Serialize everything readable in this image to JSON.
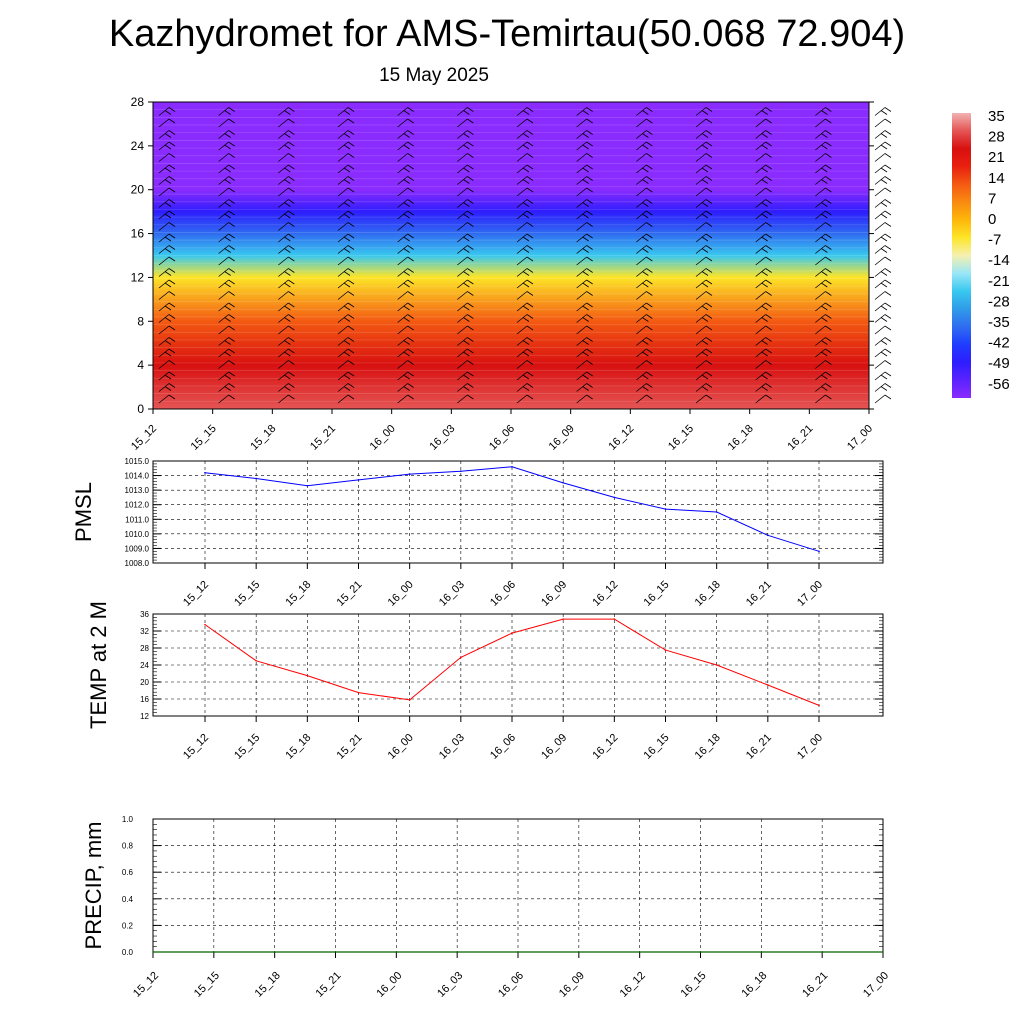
{
  "header": {
    "title": "Kazhydromet for AMS-Temirtau(50.068 72.904)",
    "date": "15 May 2025"
  },
  "chart_data": [
    {
      "type": "heatmap",
      "title": "",
      "xlabel": "",
      "ylabel": "",
      "x_tick_labels": [
        "15_12",
        "15_15",
        "15_18",
        "15_21",
        "16_00",
        "16_03",
        "16_06",
        "16_09",
        "16_12",
        "16_15",
        "16_18",
        "16_21",
        "17_00"
      ],
      "ylim": [
        0,
        28
      ],
      "y_ticks": [
        0,
        4,
        8,
        12,
        16,
        20,
        24,
        28
      ],
      "colorbar_labels": [
        "35",
        "28",
        "21",
        "14",
        "7",
        "0",
        "-7",
        "-14",
        "-21",
        "-28",
        "-35",
        "-42",
        "-49",
        "-56"
      ],
      "colorbar_colors": [
        "#8a2bff",
        "#5a23ff",
        "#2e1dff",
        "#1f3dff",
        "#2f6cf0",
        "#2f9ce8",
        "#39c8ef",
        "#9be7f7",
        "#f5f0b0",
        "#fde528",
        "#fdb70a",
        "#f98a10",
        "#f45a12",
        "#e8200f",
        "#d81010",
        "#e55555",
        "#f2b2b2"
      ],
      "description_levels": [
        {
          "z": 0,
          "value": 29
        },
        {
          "z": 4,
          "value": 23
        },
        {
          "z": 8,
          "value": 12
        },
        {
          "z": 12,
          "value": -7
        },
        {
          "z": 14,
          "value": -21
        },
        {
          "z": 16,
          "value": -33
        },
        {
          "z": 18,
          "value": -45
        },
        {
          "z": 20,
          "value": -54
        },
        {
          "z": 24,
          "value": -56
        },
        {
          "z": 28,
          "value": -56
        }
      ]
    },
    {
      "type": "line",
      "ylabel": "PMSL",
      "x": [
        "15_12",
        "15_15",
        "15_18",
        "15_21",
        "16_00",
        "16_03",
        "16_06",
        "16_09",
        "16_12",
        "16_15",
        "16_18",
        "16_21",
        "17_00"
      ],
      "ylim": [
        1008.0,
        1015.0
      ],
      "y_tick_labels": [
        "1008.0",
        "1009.0",
        "1010.0",
        "1011.0",
        "1012.0",
        "1013.0",
        "1014.0",
        "1015.0"
      ],
      "series": [
        {
          "color": "#0000ff",
          "values": [
            1014.2,
            1013.8,
            1013.3,
            1013.7,
            1014.1,
            1014.3,
            1014.6,
            1013.5,
            1012.5,
            1011.7,
            1011.5,
            1009.9,
            1008.8
          ]
        }
      ]
    },
    {
      "type": "line",
      "ylabel": "TEMP at 2 M",
      "x": [
        "15_12",
        "15_15",
        "15_18",
        "15_21",
        "16_00",
        "16_03",
        "16_06",
        "16_09",
        "16_12",
        "16_15",
        "16_18",
        "16_21",
        "17_00"
      ],
      "ylim": [
        12,
        36
      ],
      "y_tick_labels": [
        "12",
        "16",
        "20",
        "24",
        "28",
        "32",
        "36"
      ],
      "series": [
        {
          "color": "#ff0000",
          "values": [
            33.5,
            25.0,
            21.5,
            17.5,
            15.8,
            25.8,
            31.5,
            34.8,
            34.8,
            27.5,
            24.0,
            19.3,
            14.5
          ]
        }
      ]
    },
    {
      "type": "line",
      "ylabel": "PRECIP, mm",
      "x_tick_labels": [
        "15_12",
        "15_15",
        "15_18",
        "15_21",
        "16_00",
        "16_03",
        "16_06",
        "16_09",
        "16_12",
        "16_15",
        "16_18",
        "16_21",
        "17_00"
      ],
      "ylim": [
        0.0,
        1.0
      ],
      "y_tick_labels": [
        "0.0",
        "0.2",
        "0.4",
        "0.6",
        "0.8",
        "1.0"
      ],
      "series": [
        {
          "color": "#006400",
          "values": [
            0,
            0,
            0,
            0,
            0,
            0,
            0,
            0,
            0,
            0,
            0,
            0,
            0
          ]
        }
      ]
    }
  ]
}
